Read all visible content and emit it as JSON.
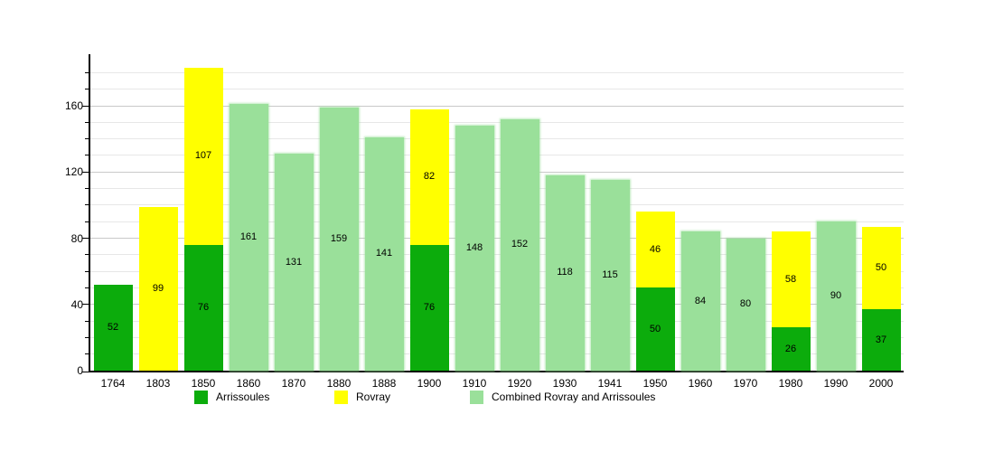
{
  "chart_data": {
    "type": "bar",
    "stacked": true,
    "title": "",
    "xlabel": "",
    "ylabel": "",
    "categories": [
      "1764",
      "1803",
      "1850",
      "1860",
      "1870",
      "1880",
      "1888",
      "1900",
      "1910",
      "1920",
      "1930",
      "1941",
      "1950",
      "1960",
      "1970",
      "1980",
      "1990",
      "2000"
    ],
    "series": [
      {
        "name": "Arrissoules",
        "color": "#0cac0c",
        "values": [
          52,
          null,
          76,
          null,
          null,
          null,
          null,
          76,
          null,
          null,
          null,
          null,
          50,
          null,
          null,
          26,
          null,
          37
        ]
      },
      {
        "name": "Rovray",
        "color": "#ffff00",
        "values": [
          null,
          99,
          107,
          null,
          null,
          null,
          null,
          82,
          null,
          null,
          null,
          null,
          46,
          null,
          null,
          58,
          null,
          50
        ]
      },
      {
        "name": "Combined Rovray and Arrissoules",
        "color": "#9ae09a",
        "values": [
          null,
          null,
          null,
          161,
          131,
          159,
          141,
          null,
          148,
          152,
          118,
          115,
          null,
          84,
          80,
          null,
          90,
          null
        ]
      }
    ],
    "stack_totals": [
      52,
      99,
      183,
      161,
      131,
      159,
      141,
      158,
      148,
      152,
      118,
      115,
      96,
      84,
      80,
      84,
      90,
      87
    ],
    "ylim": [
      0,
      191
    ],
    "yticks": [
      0,
      40,
      80,
      120,
      160
    ],
    "grid": true,
    "grid_minor_interval": 10,
    "grid_major_interval": 40,
    "grid_max": 180,
    "legend_position": "bottom",
    "colors": {
      "background": "#ffffff",
      "axis": "#000000",
      "grid_minor": "#e7e7e7",
      "grid_major": "#c9c9c9",
      "label": "#000000"
    }
  }
}
